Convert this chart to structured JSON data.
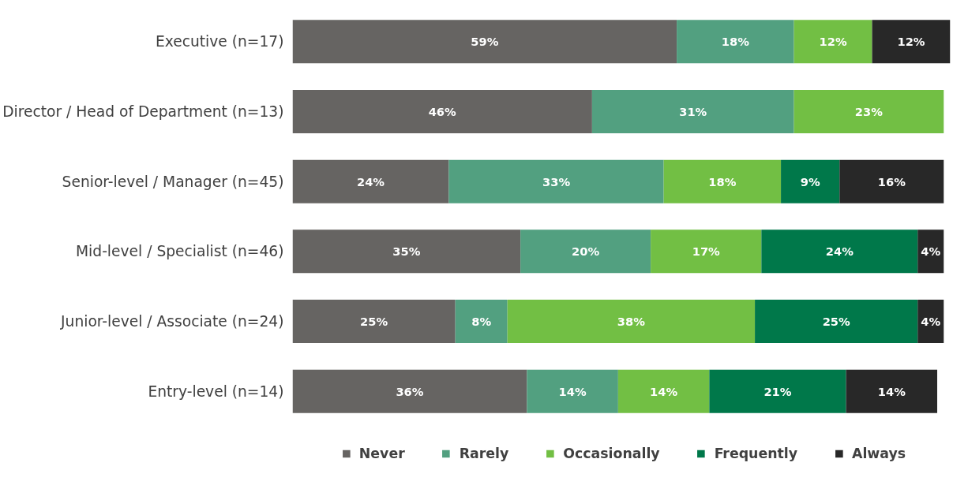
{
  "chart_data": {
    "type": "bar",
    "orientation": "horizontal",
    "stacked": true,
    "legend": "bottom",
    "grid": false,
    "categories": [
      "Executive (n=17)",
      "Director / Head of Department (n=13)",
      "Senior-level / Manager (n=45)",
      "Mid-level / Specialist (n=46)",
      "Junior-level / Associate (n=24)",
      "Entry-level (n=14)"
    ],
    "series": [
      {
        "name": "Never",
        "color": "#666462",
        "values": [
          59,
          46,
          24,
          35,
          25,
          36
        ],
        "value_labels": [
          "59%",
          "46%",
          "24%",
          "35%",
          "25%",
          "36%"
        ]
      },
      {
        "name": "Rarely",
        "color": "#52a080",
        "values": [
          18,
          31,
          33,
          20,
          8,
          14
        ],
        "value_labels": [
          "18%",
          "31%",
          "33%",
          "20%",
          "8%",
          "14%"
        ]
      },
      {
        "name": "Occasionally",
        "color": "#72bf44",
        "values": [
          12,
          23,
          18,
          17,
          38,
          14
        ],
        "value_labels": [
          "12%",
          "23%",
          "18%",
          "17%",
          "38%",
          "14%"
        ]
      },
      {
        "name": "Frequently",
        "color": "#00784a",
        "values": [
          null,
          null,
          9,
          24,
          25,
          21
        ],
        "value_labels": [
          null,
          null,
          "9%",
          "24%",
          "25%",
          "21%"
        ]
      },
      {
        "name": "Always",
        "color": "#282828",
        "values": [
          12,
          null,
          16,
          4,
          4,
          14
        ],
        "value_labels": [
          "12%",
          null,
          "16%",
          "4%",
          "4%",
          "14%"
        ]
      }
    ]
  }
}
